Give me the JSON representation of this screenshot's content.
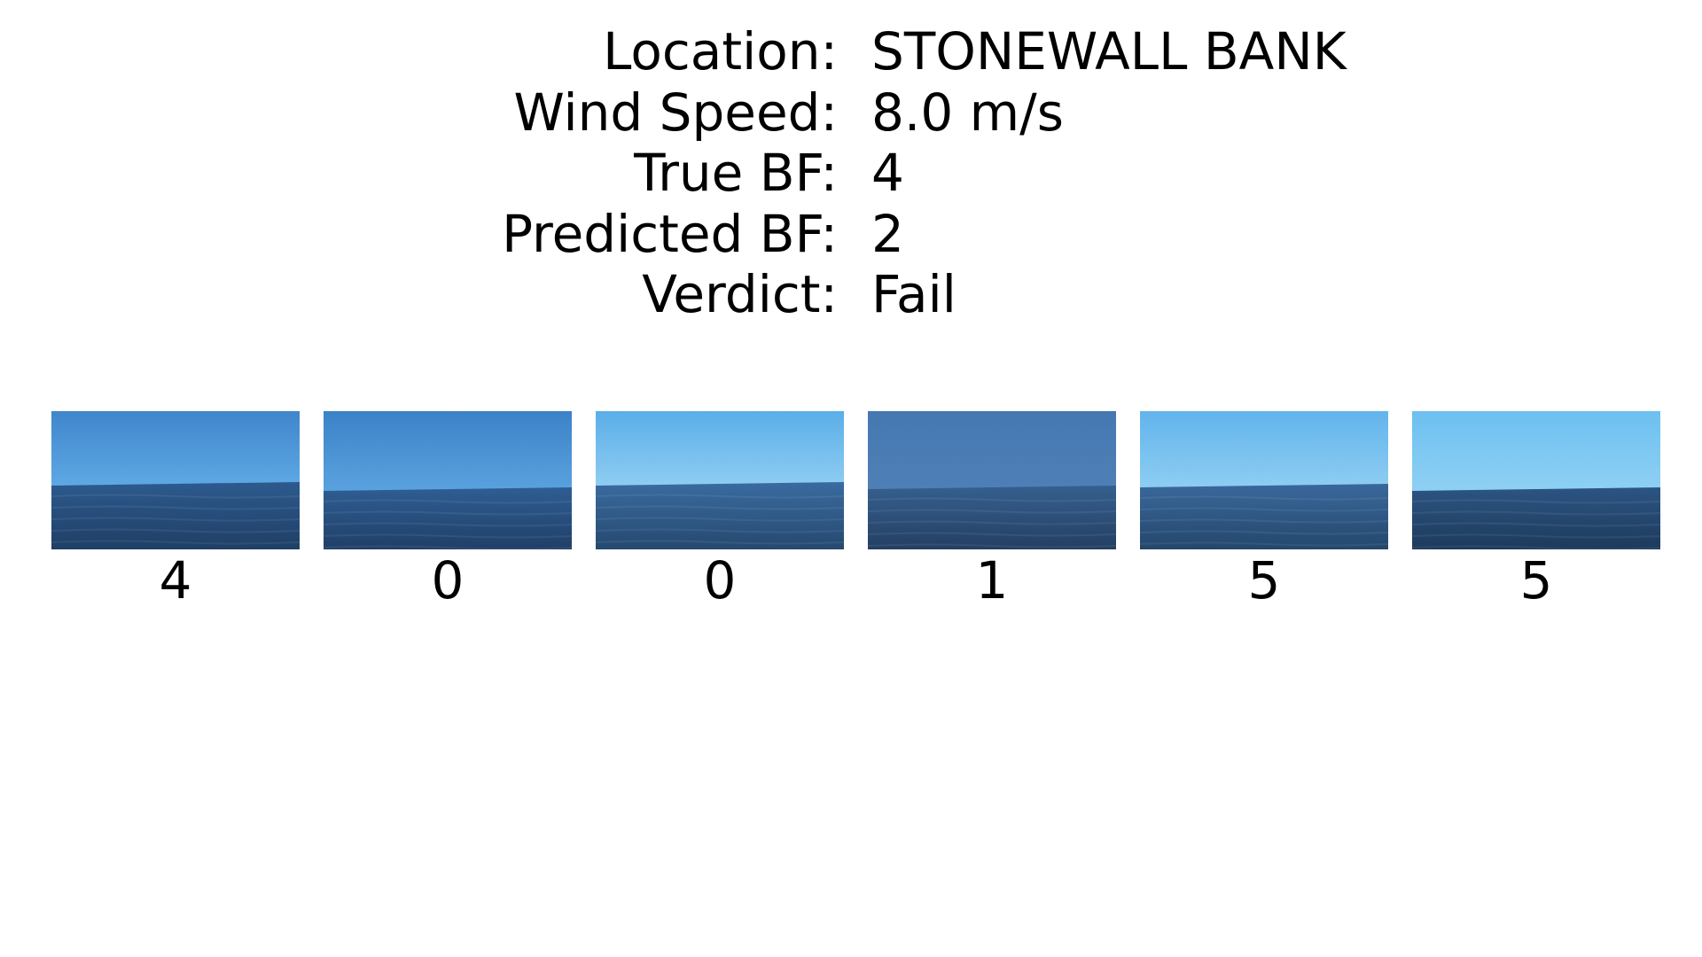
{
  "info": [
    {
      "label": "Location:",
      "value": "STONEWALL BANK"
    },
    {
      "label": "Wind Speed:",
      "value": "8.0 m/s"
    },
    {
      "label": "True BF:",
      "value": "4"
    },
    {
      "label": "Predicted BF:",
      "value": "2"
    },
    {
      "label": "Verdict:",
      "value": "Fail"
    }
  ],
  "frames": [
    {
      "caption": "4",
      "sky_top": "#3f86cc",
      "sky_bottom": "#5ea8e4",
      "sea_top": "#2d5a8e",
      "sea_bottom": "#1f3f66"
    },
    {
      "caption": "0",
      "sky_top": "#3b82c8",
      "sky_bottom": "#5aa2de",
      "sea_top": "#2f5e93",
      "sea_bottom": "#203f68"
    },
    {
      "caption": "0",
      "sky_top": "#5aaee8",
      "sky_bottom": "#8ecdf2",
      "sea_top": "#3a6ba0",
      "sea_bottom": "#25496f"
    },
    {
      "caption": "1",
      "sky_top": "#4578b2",
      "sky_bottom": "#4f7fb6",
      "sea_top": "#35608f",
      "sea_bottom": "#243f62"
    },
    {
      "caption": "5",
      "sky_top": "#62b4ec",
      "sky_bottom": "#8dcdf2",
      "sea_top": "#3a689c",
      "sea_bottom": "#24476c"
    },
    {
      "caption": "5",
      "sky_top": "#6cc0f0",
      "sky_bottom": "#8fd0f4",
      "sea_top": "#2c5583",
      "sea_bottom": "#1d3a5c"
    }
  ]
}
